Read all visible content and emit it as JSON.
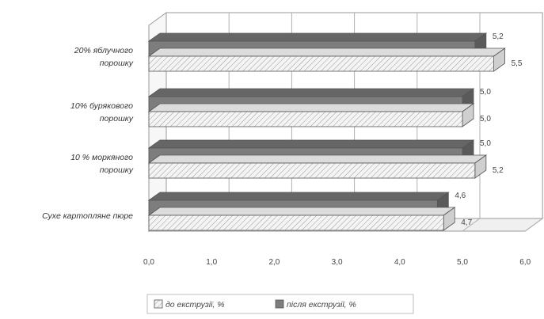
{
  "chart_data": {
    "type": "bar",
    "orientation": "horizontal",
    "title": "",
    "xlabel": "",
    "ylabel": "",
    "xlim": [
      0,
      6
    ],
    "x_ticks": [
      "0,0",
      "1,0",
      "2,0",
      "3,0",
      "4,0",
      "5,0",
      "6,0"
    ],
    "grid": true,
    "three_d": true,
    "legend_position": "bottom",
    "categories": [
      "20% яблучного\nпорошку",
      "10% бурякового\nпорошку",
      "10 % моркяного\nпорошку",
      "Сухе картопляне пюре"
    ],
    "series": [
      {
        "name": "до екструзії, %",
        "values": [
          5.5,
          5.0,
          5.2,
          4.7
        ],
        "labels": [
          "5,5",
          "5,0",
          "5,2",
          "4,7"
        ],
        "color": "#f2f2f2",
        "pattern": "hatched"
      },
      {
        "name": "після екструзії, %",
        "values": [
          5.2,
          5.0,
          5.0,
          4.6
        ],
        "labels": [
          "5,2",
          "5,0",
          "5,0",
          "4,6"
        ],
        "color": "#7d7d7d",
        "pattern": "solid"
      }
    ]
  }
}
